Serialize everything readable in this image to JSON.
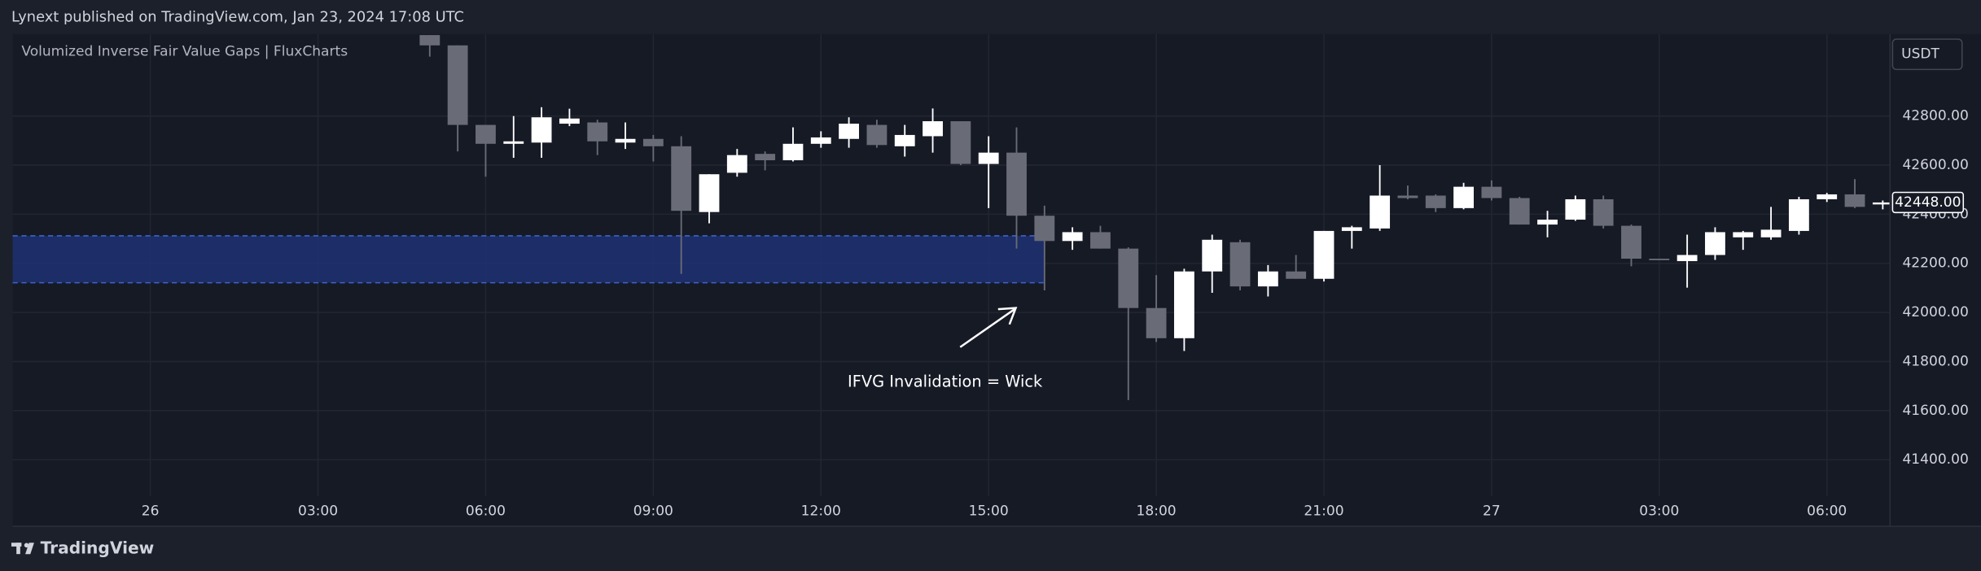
{
  "header": {
    "publisher": "Lynext published on TradingView.com, Jan 23, 2024 17:08 UTC",
    "brand": "TradingView"
  },
  "chart_data": {
    "type": "candlestick",
    "title": "Volumized Inverse Fair Value Gaps | FluxCharts",
    "currency": "USDT",
    "annotation": "IFVG Invalidation = Wick",
    "x": [
      5,
      5.5,
      6,
      6.5,
      7,
      7.5,
      8,
      8.5,
      9,
      9.5,
      10,
      10.5,
      11,
      11.5,
      12,
      12.5,
      13,
      13.5,
      14,
      14.5,
      15,
      15.5,
      16,
      16.5,
      17,
      17.5,
      18,
      18.5,
      19,
      19.5,
      20,
      20.5,
      21,
      21.5,
      22,
      22.5,
      23,
      23.5,
      24,
      24.5,
      25,
      25.5,
      26,
      26.5,
      27,
      27.5,
      28,
      28.5,
      29,
      29.5,
      30,
      30.5,
      31
    ],
    "open": [
      43130,
      43088,
      42764,
      42687,
      42692,
      42769,
      42774,
      42692,
      42707,
      42677,
      42409,
      42569,
      42646,
      42620,
      42687,
      42707,
      42764,
      42677,
      42718,
      42779,
      42605,
      42651,
      42394,
      42291,
      42327,
      42260,
      42018,
      41895,
      42167,
      42286,
      42106,
      42167,
      42137,
      42332,
      42342,
      42476,
      42476,
      42425,
      42512,
      42466,
      42358,
      42378,
      42461,
      42353,
      42219,
      42209,
      42234,
      42306,
      42306,
      42332,
      42461,
      42481,
      42440
    ],
    "high": [
      43130,
      43088,
      42764,
      42800,
      42836,
      42830,
      42785,
      42774,
      42723,
      42718,
      42563,
      42666,
      42656,
      42754,
      42738,
      42795,
      42785,
      42764,
      42831,
      42779,
      42718,
      42754,
      42435,
      42347,
      42353,
      42265,
      42152,
      42178,
      42317,
      42296,
      42193,
      42234,
      42332,
      42353,
      42600,
      42517,
      42481,
      42528,
      42538,
      42471,
      42414,
      42476,
      42476,
      42358,
      42219,
      42317,
      42347,
      42332,
      42430,
      42471,
      42487,
      42543,
      42456
    ],
    "low": [
      43042,
      42656,
      42553,
      42630,
      42630,
      42759,
      42641,
      42666,
      42615,
      42157,
      42363,
      42553,
      42579,
      42615,
      42671,
      42671,
      42671,
      42635,
      42651,
      42600,
      42425,
      42260,
      42090,
      42255,
      42260,
      41643,
      41880,
      41843,
      42080,
      42090,
      42065,
      42137,
      42126,
      42260,
      42332,
      42461,
      42409,
      42420,
      42456,
      42358,
      42306,
      42373,
      42342,
      42188,
      42214,
      42101,
      42214,
      42255,
      42296,
      42317,
      42450,
      42425,
      42420
    ],
    "close": [
      43088,
      42764,
      42687,
      42697,
      42795,
      42790,
      42697,
      42707,
      42677,
      42414,
      42563,
      42641,
      42620,
      42687,
      42713,
      42769,
      42682,
      42723,
      42779,
      42605,
      42651,
      42394,
      42291,
      42327,
      42260,
      42018,
      41895,
      42167,
      42296,
      42106,
      42167,
      42137,
      42332,
      42347,
      42476,
      42466,
      42425,
      42512,
      42466,
      42358,
      42378,
      42461,
      42353,
      42219,
      42214,
      42234,
      42327,
      42327,
      42337,
      42461,
      42481,
      42430,
      42448
    ],
    "up_color": "#ffffff",
    "down_color": "#696c76",
    "ifvg_zone": {
      "top": 42312,
      "bottom": 42121,
      "x_end": 16,
      "color": "#1e3278",
      "border_color": "#3f63c9"
    },
    "last_price": {
      "value": 42448,
      "label": "42448.00"
    },
    "xlim": [
      -2.464,
      31.13
    ],
    "ylim": [
      41252,
      43134
    ],
    "xticks": [
      {
        "value": 0,
        "label": "26"
      },
      {
        "value": 3,
        "label": "03:00"
      },
      {
        "value": 6,
        "label": "06:00"
      },
      {
        "value": 9,
        "label": "09:00"
      },
      {
        "value": 12,
        "label": "12:00"
      },
      {
        "value": 15,
        "label": "15:00"
      },
      {
        "value": 18,
        "label": "18:00"
      },
      {
        "value": 21,
        "label": "21:00"
      },
      {
        "value": 24,
        "label": "27"
      },
      {
        "value": 27,
        "label": "03:00"
      },
      {
        "value": 30,
        "label": "06:00"
      }
    ],
    "yticks": [
      {
        "value": 41400,
        "label": "41400.00"
      },
      {
        "value": 41600,
        "label": "41600.00"
      },
      {
        "value": 41800,
        "label": "41800.00"
      },
      {
        "value": 42000,
        "label": "42000.00"
      },
      {
        "value": 42200,
        "label": "42200.00"
      },
      {
        "value": 42400,
        "label": "42400.00"
      },
      {
        "value": 42600,
        "label": "42600.00"
      },
      {
        "value": 42800,
        "label": "42800.00"
      }
    ],
    "grid": true
  }
}
